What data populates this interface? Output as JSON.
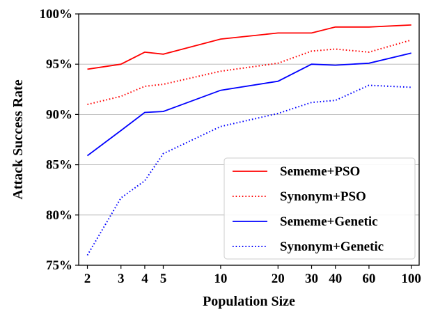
{
  "chart_data": {
    "type": "line",
    "xlabel": "Population Size",
    "ylabel": "Attack Success Rate",
    "x_scale": "log",
    "x": [
      2,
      3,
      4,
      5,
      10,
      20,
      30,
      40,
      60,
      100
    ],
    "x_tick_labels": [
      "2",
      "3",
      "4",
      "5",
      "10",
      "20",
      "30",
      "40",
      "60",
      "100"
    ],
    "ylim": [
      75,
      100
    ],
    "y_ticks": [
      75,
      80,
      85,
      90,
      95,
      100
    ],
    "y_tick_labels": [
      "75%",
      "80%",
      "85%",
      "90%",
      "95%",
      "100%"
    ],
    "grid": "horizontal",
    "legend_position": "lower-right",
    "series": [
      {
        "name": "Sememe+PSO",
        "color": "#ff0000",
        "style": "solid",
        "values": [
          94.5,
          95.0,
          96.2,
          96.0,
          97.5,
          98.1,
          98.1,
          98.7,
          98.7,
          98.9
        ]
      },
      {
        "name": "Synonym+PSO",
        "color": "#ff0000",
        "style": "dotted",
        "values": [
          91.0,
          91.8,
          92.8,
          93.0,
          94.3,
          95.1,
          96.3,
          96.5,
          96.2,
          97.4
        ]
      },
      {
        "name": "Sememe+Genetic",
        "color": "#0000ff",
        "style": "solid",
        "values": [
          85.9,
          88.4,
          90.2,
          90.3,
          92.4,
          93.3,
          95.0,
          94.9,
          95.1,
          96.1
        ]
      },
      {
        "name": "Synonym+Genetic",
        "color": "#0000ff",
        "style": "dotted",
        "values": [
          76.0,
          81.7,
          83.4,
          86.1,
          88.8,
          90.1,
          91.2,
          91.4,
          92.9,
          92.7
        ]
      }
    ]
  }
}
